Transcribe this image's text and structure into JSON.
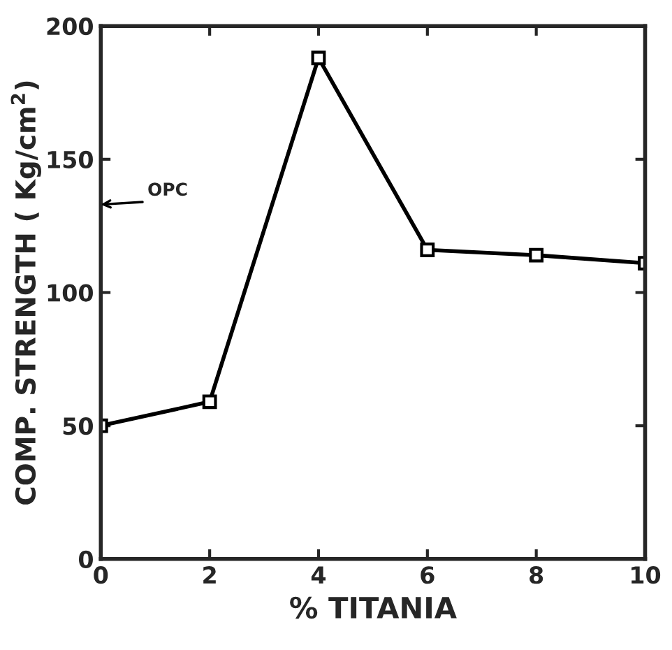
{
  "chart_data": {
    "type": "line",
    "xlabel": "% TITANIA",
    "ylabel": "COMP. STRENGTH ( Kg/cm$^{2}$)",
    "x": [
      0,
      2,
      4,
      6,
      8,
      10
    ],
    "series": [
      {
        "color": "#000000",
        "values": [
          50,
          59,
          188,
          116,
          114,
          111
        ]
      }
    ],
    "marker": "square",
    "line_style": "solid",
    "xlim": [
      0,
      10
    ],
    "ylim": [
      0,
      200
    ],
    "xticks": [
      0,
      2,
      4,
      6,
      8,
      10
    ],
    "yticks": [
      0,
      50,
      100,
      150,
      200
    ],
    "annotations": [
      "OPC"
    ],
    "grid": false,
    "legend": false
  }
}
